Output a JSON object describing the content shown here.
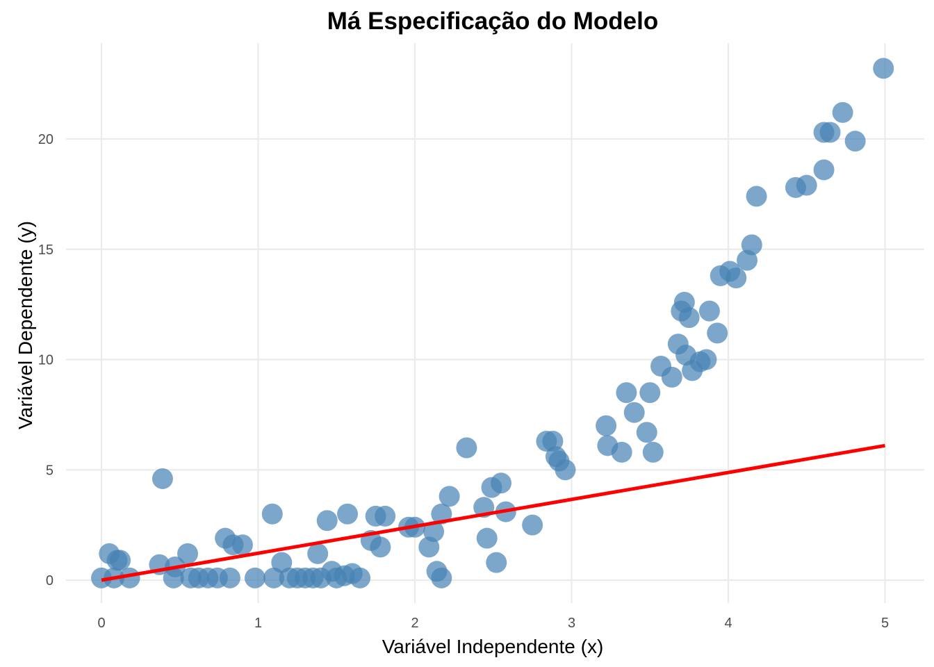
{
  "chart_data": {
    "type": "scatter",
    "title": "Má Especificação do Modelo",
    "xlabel": "Variável Independente (x)",
    "ylabel": "Variável Dependente (y)",
    "xlim": [
      -0.2,
      5.2
    ],
    "ylim": [
      -1.1,
      24.2
    ],
    "x_ticks": [
      0,
      1,
      2,
      3,
      4,
      5
    ],
    "x_tick_labels": [
      "0",
      "1",
      "2",
      "3",
      "4",
      "5"
    ],
    "y_ticks": [
      0,
      5,
      10,
      15,
      20
    ],
    "y_tick_labels": [
      "0",
      "5",
      "10",
      "15",
      "20"
    ],
    "grid": true,
    "point_color": "#4682b4",
    "fit_color": "#ff0000",
    "series": [
      {
        "type": "scatter",
        "points": [
          [
            0.0,
            0.1
          ],
          [
            0.05,
            1.2
          ],
          [
            0.08,
            0.1
          ],
          [
            0.1,
            0.9
          ],
          [
            0.12,
            0.9
          ],
          [
            0.18,
            0.1
          ],
          [
            0.37,
            0.7
          ],
          [
            0.39,
            4.6
          ],
          [
            0.46,
            0.1
          ],
          [
            0.47,
            0.6
          ],
          [
            0.55,
            1.2
          ],
          [
            0.57,
            0.1
          ],
          [
            0.62,
            0.1
          ],
          [
            0.68,
            0.1
          ],
          [
            0.74,
            0.1
          ],
          [
            0.79,
            1.9
          ],
          [
            0.82,
            0.1
          ],
          [
            0.84,
            1.6
          ],
          [
            0.9,
            1.6
          ],
          [
            0.98,
            0.1
          ],
          [
            1.09,
            3.0
          ],
          [
            1.1,
            0.1
          ],
          [
            1.15,
            0.8
          ],
          [
            1.2,
            0.1
          ],
          [
            1.25,
            0.1
          ],
          [
            1.3,
            0.1
          ],
          [
            1.35,
            0.1
          ],
          [
            1.38,
            1.2
          ],
          [
            1.4,
            0.1
          ],
          [
            1.44,
            2.7
          ],
          [
            1.47,
            0.4
          ],
          [
            1.5,
            0.1
          ],
          [
            1.55,
            0.2
          ],
          [
            1.57,
            3.0
          ],
          [
            1.6,
            0.3
          ],
          [
            1.65,
            0.1
          ],
          [
            1.72,
            1.8
          ],
          [
            1.75,
            2.9
          ],
          [
            1.78,
            1.5
          ],
          [
            1.81,
            2.9
          ],
          [
            1.96,
            2.4
          ],
          [
            2.0,
            2.4
          ],
          [
            2.09,
            1.5
          ],
          [
            2.12,
            2.2
          ],
          [
            2.14,
            0.4
          ],
          [
            2.17,
            0.1
          ],
          [
            2.17,
            3.0
          ],
          [
            2.22,
            3.8
          ],
          [
            2.33,
            6.0
          ],
          [
            2.44,
            3.3
          ],
          [
            2.46,
            1.9
          ],
          [
            2.49,
            4.2
          ],
          [
            2.52,
            0.8
          ],
          [
            2.55,
            4.4
          ],
          [
            2.58,
            3.1
          ],
          [
            2.75,
            2.5
          ],
          [
            2.84,
            6.3
          ],
          [
            2.88,
            6.3
          ],
          [
            2.9,
            5.6
          ],
          [
            2.92,
            5.4
          ],
          [
            2.96,
            5.0
          ],
          [
            3.22,
            7.0
          ],
          [
            3.23,
            6.1
          ],
          [
            3.32,
            5.8
          ],
          [
            3.35,
            8.5
          ],
          [
            3.4,
            7.6
          ],
          [
            3.48,
            6.7
          ],
          [
            3.5,
            8.5
          ],
          [
            3.52,
            5.8
          ],
          [
            3.57,
            9.7
          ],
          [
            3.64,
            9.2
          ],
          [
            3.68,
            10.7
          ],
          [
            3.7,
            12.2
          ],
          [
            3.72,
            12.6
          ],
          [
            3.73,
            10.2
          ],
          [
            3.75,
            11.9
          ],
          [
            3.77,
            9.5
          ],
          [
            3.82,
            9.9
          ],
          [
            3.86,
            10.0
          ],
          [
            3.88,
            12.2
          ],
          [
            3.93,
            11.2
          ],
          [
            3.95,
            13.8
          ],
          [
            4.01,
            14.0
          ],
          [
            4.05,
            13.7
          ],
          [
            4.12,
            14.5
          ],
          [
            4.15,
            15.2
          ],
          [
            4.18,
            17.4
          ],
          [
            4.43,
            17.8
          ],
          [
            4.5,
            17.9
          ],
          [
            4.61,
            18.6
          ],
          [
            4.61,
            20.3
          ],
          [
            4.65,
            20.3
          ],
          [
            4.73,
            21.2
          ],
          [
            4.81,
            19.9
          ],
          [
            4.99,
            23.2
          ]
        ]
      },
      {
        "type": "line",
        "x": [
          0.0,
          5.0
        ],
        "y": [
          0.0,
          6.1
        ]
      }
    ]
  }
}
